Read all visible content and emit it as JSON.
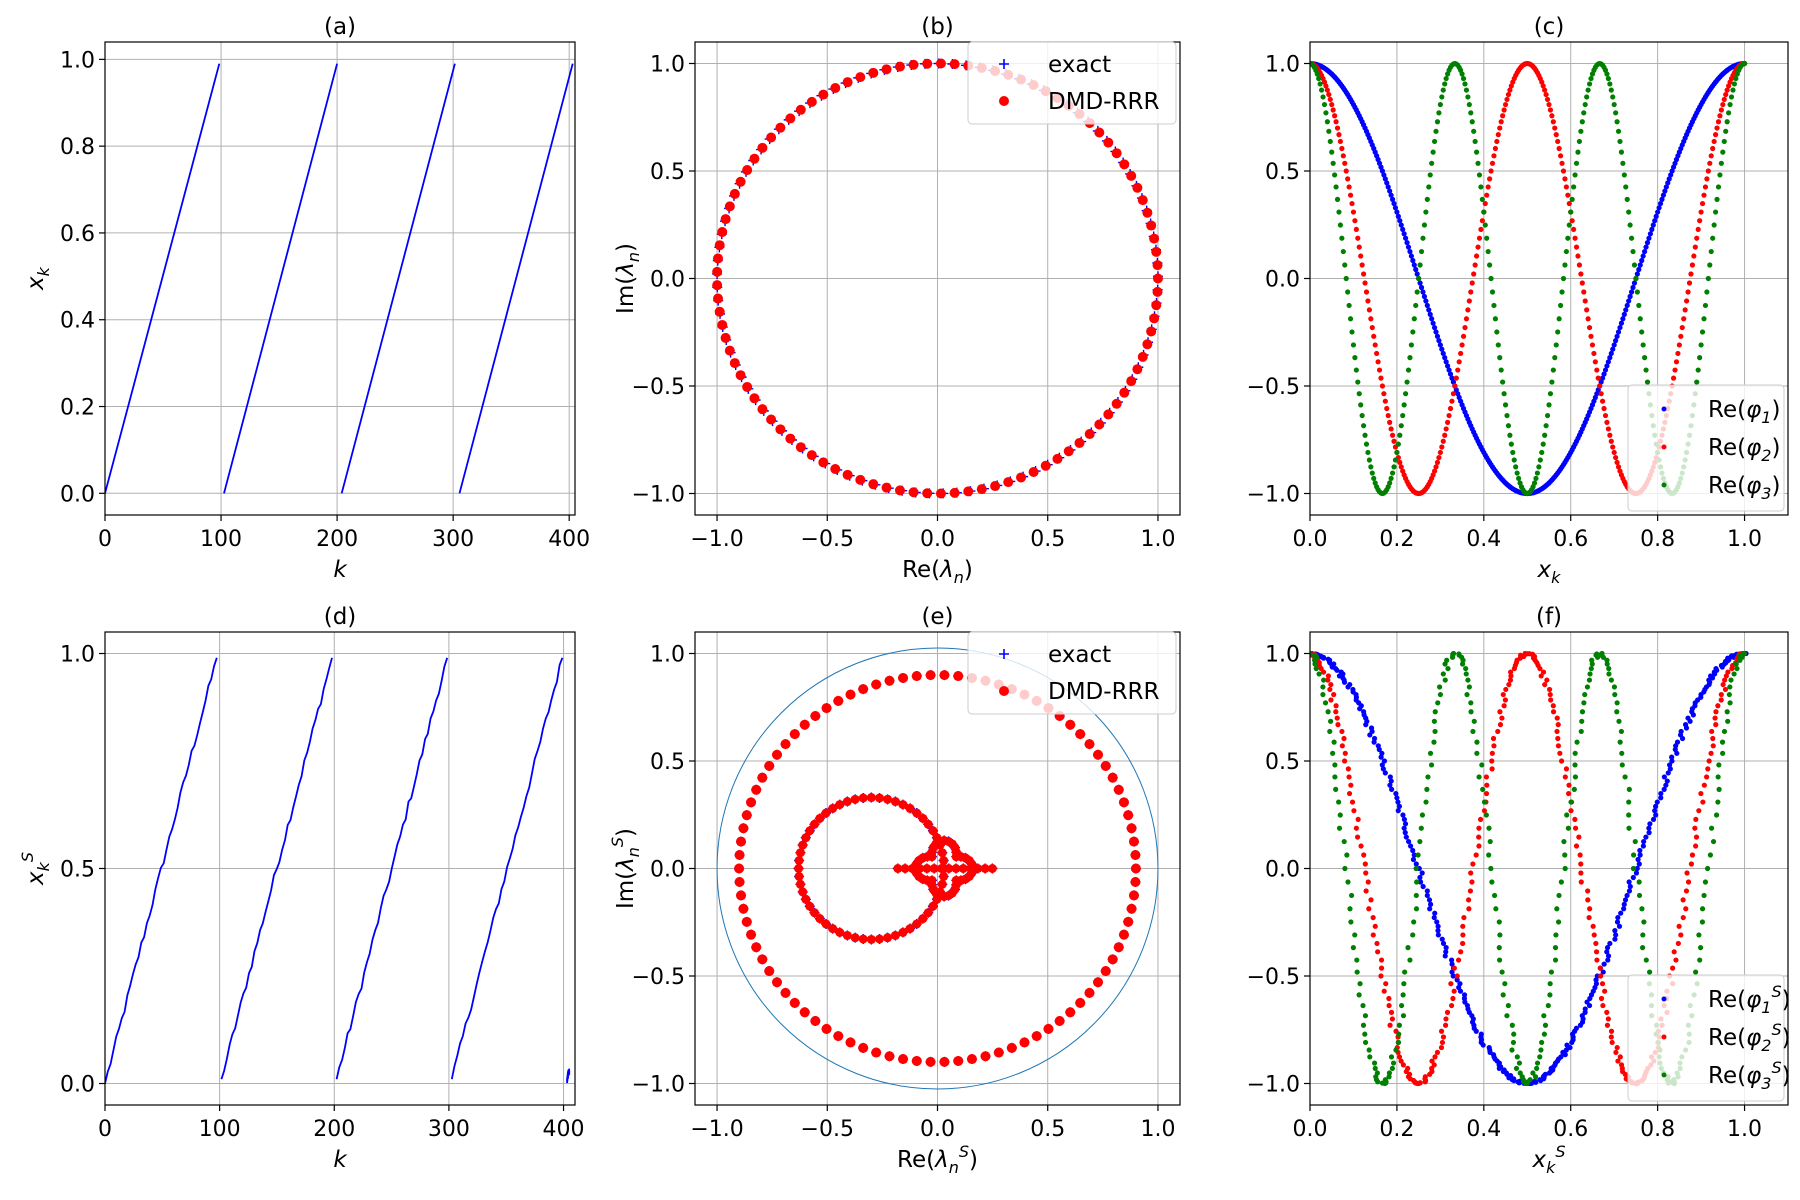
{
  "chart_data": [
    {
      "id": "a",
      "type": "line",
      "title": "(a)",
      "xlabel": "k",
      "ylabel": "x_k",
      "xlim": [
        0,
        405
      ],
      "ylim": [
        -0.05,
        1.04
      ],
      "grid": true,
      "xticks": [
        0,
        100,
        200,
        300,
        400
      ],
      "xtick_labels": [
        "0",
        "100",
        "200",
        "300",
        "400"
      ],
      "yticks": [
        0,
        0.2,
        0.4,
        0.6,
        0.8,
        1.0
      ],
      "ytick_labels": [
        "0.0",
        "0.2",
        "0.4",
        "0.6",
        "0.8",
        "1.0"
      ],
      "series": [
        {
          "color": "#0000ff",
          "kind": "sawtooth",
          "period": 101.5,
          "x_max": 405,
          "noise": 0
        }
      ]
    },
    {
      "id": "b",
      "type": "scatter",
      "title": "(b)",
      "xlabel": "Re(λ_n)",
      "ylabel": "Im(λ_n)",
      "xlim": [
        -1.1,
        1.1
      ],
      "ylim": [
        -1.1,
        1.1
      ],
      "grid": true,
      "xticks": [
        -1.0,
        -0.5,
        0.0,
        0.5,
        1.0
      ],
      "xtick_labels": [
        "−1.0",
        "−0.5",
        "0.0",
        "0.5",
        "1.0"
      ],
      "yticks": [
        -1.0,
        -0.5,
        0.0,
        0.5,
        1.0
      ],
      "ytick_labels": [
        "−1.0",
        "−0.5",
        "0.0",
        "0.5",
        "1.0"
      ],
      "legend": "top-right",
      "series": [
        {
          "name": "exact",
          "marker": "plus",
          "color": "#0000ff",
          "kind": "circle",
          "radius": 1.0,
          "count": 101
        },
        {
          "name": "DMD-RRR",
          "marker": "dot",
          "color": "#ff0000",
          "kind": "circle",
          "radius": 1.0,
          "count": 101
        }
      ]
    },
    {
      "id": "c",
      "type": "scatter",
      "title": "(c)",
      "xlabel": "x_k",
      "ylabel": "",
      "xlim": [
        0,
        1.1
      ],
      "ylim": [
        -1.1,
        1.1
      ],
      "grid": true,
      "xticks": [
        0,
        0.2,
        0.4,
        0.6,
        0.8,
        1.0
      ],
      "xtick_labels": [
        "0.0",
        "0.2",
        "0.4",
        "0.6",
        "0.8",
        "1.0"
      ],
      "yticks": [
        -1.0,
        -0.5,
        0.0,
        0.5,
        1.0
      ],
      "ytick_labels": [
        "−1.0",
        "−0.5",
        "0.0",
        "0.5",
        "1.0"
      ],
      "legend": "lower-right",
      "series": [
        {
          "name": "Re(φ_1)",
          "color": "#0000ff",
          "kind": "cos",
          "freq": 1
        },
        {
          "name": "Re(φ_2)",
          "color": "#ff0000",
          "kind": "cos",
          "freq": 2
        },
        {
          "name": "Re(φ_3)",
          "color": "#008000",
          "kind": "cos",
          "freq": 3
        }
      ]
    },
    {
      "id": "d",
      "type": "line",
      "title": "(d)",
      "xlabel": "k",
      "ylabel": "x_k^S",
      "xlim": [
        0,
        410
      ],
      "ylim": [
        -0.05,
        1.05
      ],
      "grid": true,
      "xticks": [
        0,
        100,
        200,
        300,
        400
      ],
      "xtick_labels": [
        "0",
        "100",
        "200",
        "300",
        "400"
      ],
      "yticks": [
        0,
        0.5,
        1.0
      ],
      "ytick_labels": [
        "0.0",
        "0.5",
        "1.0"
      ],
      "series": [
        {
          "color": "#0000ff",
          "kind": "sawtooth",
          "period": 100.5,
          "x_max": 405,
          "noise": 1
        }
      ]
    },
    {
      "id": "e",
      "type": "scatter",
      "title": "(e)",
      "xlabel": "Re(λ_n^S)",
      "ylabel": "Im(λ_n^S)",
      "xlim": [
        -1.1,
        1.1
      ],
      "ylim": [
        -1.1,
        1.1
      ],
      "grid": true,
      "xticks": [
        -1.0,
        -0.5,
        0.0,
        0.5,
        1.0
      ],
      "xtick_labels": [
        "−1.0",
        "−0.5",
        "0.0",
        "0.5",
        "1.0"
      ],
      "yticks": [
        -1.0,
        -0.5,
        0.0,
        0.5,
        1.0
      ],
      "ytick_labels": [
        "−1.0",
        "−0.5",
        "0.0",
        "0.5",
        "1.0"
      ],
      "legend": "top-right",
      "reference_circle": {
        "radius": 1.0,
        "color": "#1f77b4"
      },
      "series": [
        {
          "name": "exact",
          "marker": "plus",
          "color": "#0000ff",
          "kind": "curves"
        },
        {
          "name": "DMD-RRR",
          "marker": "dot",
          "color": "#ff0000",
          "kind": "curves"
        }
      ],
      "curves": {
        "outer": {
          "radius": 0.9,
          "center": [
            0,
            0
          ],
          "count": 90
        },
        "mid": {
          "radius": 0.33,
          "center": [
            -0.3,
            0
          ],
          "count": 56
        },
        "inner": {
          "radius": 0.13,
          "center": [
            0.03,
            0
          ],
          "count": 40
        }
      }
    },
    {
      "id": "f",
      "type": "scatter",
      "title": "(f)",
      "xlabel": "x_k^S",
      "ylabel": "",
      "xlim": [
        0,
        1.1
      ],
      "ylim": [
        -1.1,
        1.1
      ],
      "grid": true,
      "xticks": [
        0,
        0.2,
        0.4,
        0.6,
        0.8,
        1.0
      ],
      "xtick_labels": [
        "0.0",
        "0.2",
        "0.4",
        "0.6",
        "0.8",
        "1.0"
      ],
      "yticks": [
        -1.0,
        -0.5,
        0.0,
        0.5,
        1.0
      ],
      "ytick_labels": [
        "−1.0",
        "−0.5",
        "0.0",
        "0.5",
        "1.0"
      ],
      "legend": "lower-right",
      "series": [
        {
          "name": "Re(φ_1^S)",
          "color": "#0000ff",
          "kind": "cos",
          "freq": 1
        },
        {
          "name": "Re(φ_2^S)",
          "color": "#ff0000",
          "kind": "cos",
          "freq": 2
        },
        {
          "name": "Re(φ_3^S)",
          "color": "#008000",
          "kind": "cos",
          "freq": 3
        }
      ]
    }
  ]
}
